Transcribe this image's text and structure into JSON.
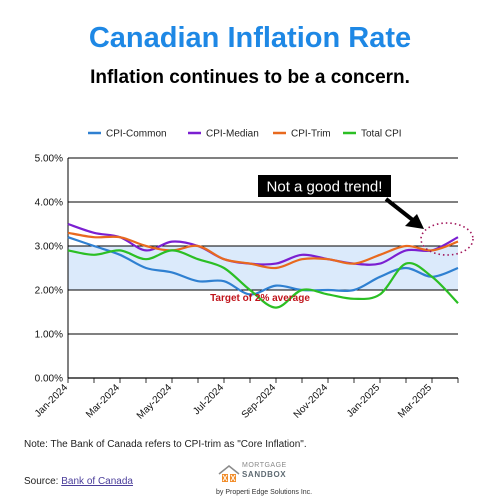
{
  "header": {
    "title": "Canadian Inflation Rate",
    "subtitle": "Inflation continues to be a concern."
  },
  "chart_data": {
    "type": "line",
    "title": "",
    "xlabel": "",
    "ylabel": "",
    "x": [
      "Jan-2024",
      "Feb-2024",
      "Mar-2024",
      "Apr-2024",
      "May-2024",
      "Jun-2024",
      "Jul-2024",
      "Aug-2024",
      "Sep-2024",
      "Oct-2024",
      "Nov-2024",
      "Dec-2024",
      "Jan-2025",
      "Feb-2025",
      "Mar-2025",
      "Apr-2025"
    ],
    "x_tick_labels": [
      "Jan-2024",
      "Mar-2024",
      "May-2024",
      "Jul-2024",
      "Sep-2024",
      "Nov-2024",
      "Jan-2025",
      "Mar-2025"
    ],
    "ylim": [
      0,
      5
    ],
    "y_ticks": [
      0,
      1,
      2,
      3,
      4,
      5
    ],
    "y_tick_labels": [
      "0.00%",
      "1.00%",
      "2.00%",
      "3.00%",
      "4.00%",
      "5.00%"
    ],
    "grid": true,
    "legend_position": "top",
    "target_band": [
      2,
      3
    ],
    "series": [
      {
        "name": "CPI-Common",
        "color": "#2f80d1",
        "values": [
          3.2,
          3.0,
          2.8,
          2.5,
          2.4,
          2.2,
          2.2,
          1.9,
          2.1,
          2.0,
          2.0,
          2.0,
          2.3,
          2.5,
          2.3,
          2.5
        ]
      },
      {
        "name": "CPI-Median",
        "color": "#7b1fd1",
        "values": [
          3.5,
          3.3,
          3.2,
          2.9,
          3.1,
          3.0,
          2.7,
          2.6,
          2.6,
          2.8,
          2.7,
          2.6,
          2.6,
          2.9,
          2.9,
          3.2
        ]
      },
      {
        "name": "CPI-Trim",
        "color": "#e8691e",
        "values": [
          3.3,
          3.2,
          3.2,
          3.0,
          2.9,
          3.0,
          2.7,
          2.6,
          2.5,
          2.7,
          2.7,
          2.6,
          2.8,
          3.0,
          2.9,
          3.1
        ]
      },
      {
        "name": "Total CPI",
        "color": "#2bbf24",
        "values": [
          2.9,
          2.8,
          2.9,
          2.7,
          2.9,
          2.7,
          2.5,
          2.0,
          1.6,
          2.0,
          1.9,
          1.8,
          1.9,
          2.6,
          2.3,
          1.7
        ]
      }
    ],
    "annotations": {
      "trend_label": "Not a good trend!",
      "target_label": "Target of 2% average"
    },
    "colors": {
      "band_fill": "#dbeafb",
      "target_label": "#c0141b",
      "ellipse": "#a0145a"
    }
  },
  "footer": {
    "note": "Note: The Bank of Canada refers to CPI-trim as \"Core Inflation\".",
    "source_prefix": "Source: ",
    "source_link": "Bank of Canada",
    "logo_line1": "MORTGAGE",
    "logo_line2": "SANDBOX",
    "logo_byline": "by Properti Edge Solutions Inc."
  }
}
